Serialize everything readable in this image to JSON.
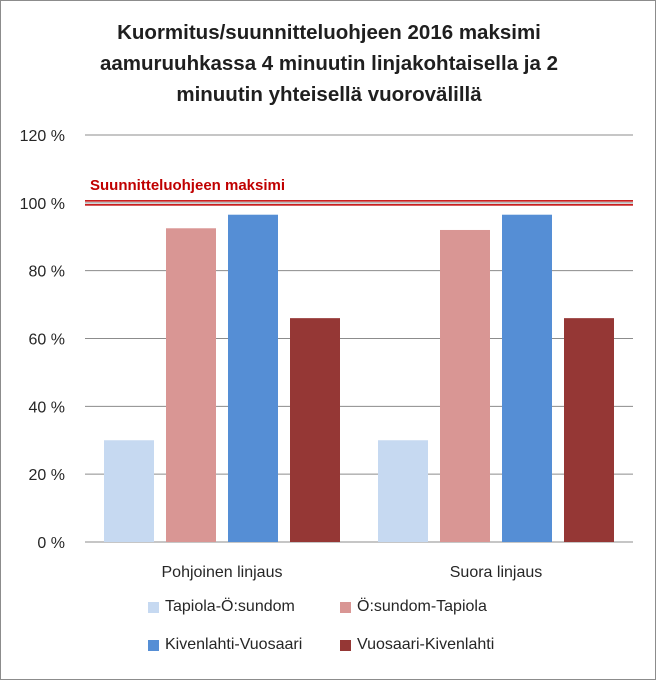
{
  "chart_data": {
    "type": "bar",
    "title": "Kuormitus/suunnitteluohjeen 2016  maksimi\naamuruuhkassa 4 minuutin linjakohtaisella ja 2\nminuutin yhteisellä vuorovälillä",
    "categories": [
      "Pohjoinen linjaus",
      "Suora linjaus"
    ],
    "series": [
      {
        "name": "Tapiola-Ö:sundom",
        "color": "#c6d9f1",
        "values": [
          30,
          30
        ]
      },
      {
        "name": "Ö:sundom-Tapiola",
        "color": "#d99694",
        "values": [
          92.5,
          92
        ]
      },
      {
        "name": "Kivenlahti-Vuosaari",
        "color": "#558ed5",
        "values": [
          96.5,
          96.5
        ]
      },
      {
        "name": "Vuosaari-Kivenlahti",
        "color": "#953735",
        "values": [
          66,
          66
        ]
      }
    ],
    "ylim": [
      0,
      120
    ],
    "yticks": [
      0,
      20,
      40,
      60,
      80,
      100,
      120
    ],
    "ytick_labels": [
      "0 %",
      "20 %",
      "40 %",
      "60 %",
      "80 %",
      "100 %",
      "120 %"
    ],
    "grid": true,
    "legend_position": "bottom",
    "reference_line": {
      "value": 100,
      "label": "Suunnitteluohjeen maksimi",
      "color": "#c00000"
    },
    "xlabel": "",
    "ylabel": ""
  }
}
